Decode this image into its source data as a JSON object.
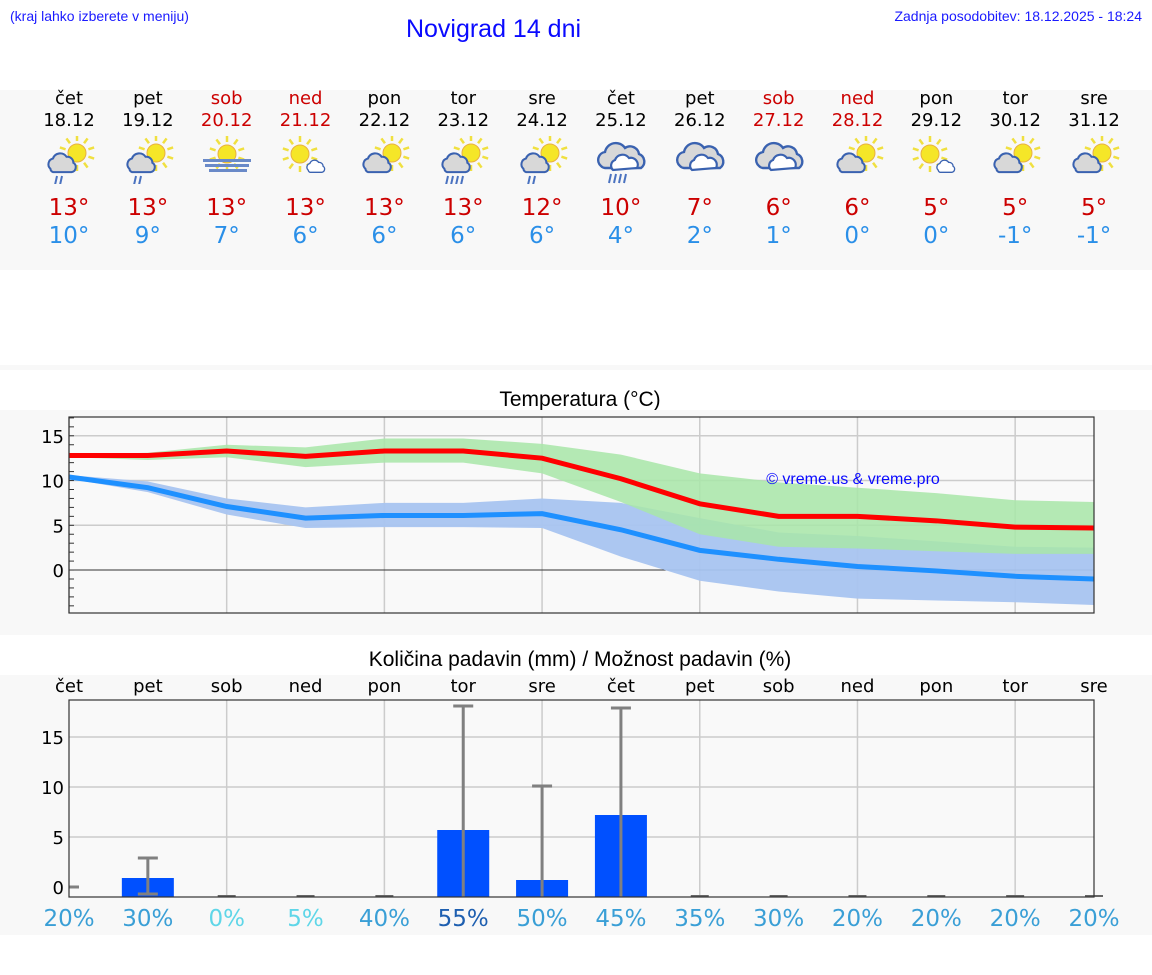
{
  "header": {
    "hint": "(kraj lahko izberete v meniju)",
    "title": "Novigrad 14 dni",
    "updated": "Zadnja posodobitev: 18.12.2025 - 18:24"
  },
  "days": [
    {
      "name": "čet",
      "date": "18.12",
      "weekend": false,
      "icon": "partly-sunny-light-rain-icon",
      "tmax": "13°",
      "tmin": "10°"
    },
    {
      "name": "pet",
      "date": "19.12",
      "weekend": false,
      "icon": "partly-sunny-light-rain-icon",
      "tmax": "13°",
      "tmin": "9°"
    },
    {
      "name": "sob",
      "date": "20.12",
      "weekend": true,
      "icon": "sun-fog-icon",
      "tmax": "13°",
      "tmin": "7°"
    },
    {
      "name": "ned",
      "date": "21.12",
      "weekend": true,
      "icon": "mostly-sunny-icon",
      "tmax": "13°",
      "tmin": "6°"
    },
    {
      "name": "pon",
      "date": "22.12",
      "weekend": false,
      "icon": "partly-cloudy-icon",
      "tmax": "13°",
      "tmin": "6°"
    },
    {
      "name": "tor",
      "date": "23.12",
      "weekend": false,
      "icon": "partly-sunny-rain-icon",
      "tmax": "13°",
      "tmin": "6°"
    },
    {
      "name": "sre",
      "date": "24.12",
      "weekend": false,
      "icon": "partly-sunny-light-rain-icon",
      "tmax": "12°",
      "tmin": "6°"
    },
    {
      "name": "čet",
      "date": "25.12",
      "weekend": false,
      "icon": "cloudy-rain-icon",
      "tmax": "10°",
      "tmin": "4°"
    },
    {
      "name": "pet",
      "date": "26.12",
      "weekend": false,
      "icon": "cloudy-icon",
      "tmax": "7°",
      "tmin": "2°"
    },
    {
      "name": "sob",
      "date": "27.12",
      "weekend": true,
      "icon": "cloudy-icon",
      "tmax": "6°",
      "tmin": "1°"
    },
    {
      "name": "ned",
      "date": "28.12",
      "weekend": true,
      "icon": "partly-cloudy-icon",
      "tmax": "6°",
      "tmin": "0°"
    },
    {
      "name": "pon",
      "date": "29.12",
      "weekend": false,
      "icon": "mostly-sunny-icon",
      "tmax": "5°",
      "tmin": "0°"
    },
    {
      "name": "tor",
      "date": "30.12",
      "weekend": false,
      "icon": "partly-cloudy-icon",
      "tmax": "5°",
      "tmin": "-1°"
    },
    {
      "name": "sre",
      "date": "31.12",
      "weekend": false,
      "icon": "partly-cloudy-icon",
      "tmax": "5°",
      "tmin": "-1°"
    }
  ],
  "temp_chart": {
    "title": "Temperatura (°C)",
    "watermark": "© vreme.us & vreme.pro"
  },
  "precip_chart": {
    "title": "Količina padavin (mm) / Možnost padavin (%)"
  },
  "colors": {
    "max_line": "#ff0000",
    "max_band": "#a8e6a8",
    "min_line": "#1e90ff",
    "min_band": "#a8c4f0",
    "bar": "#0050ff",
    "errorbar": "#808080",
    "weekend": "#cc0000"
  },
  "chart_data": [
    {
      "type": "line",
      "title": "Temperatura (°C)",
      "xlabel": "",
      "ylabel": "°C",
      "x": [
        "čet 18.12",
        "pet 19.12",
        "sob 20.12",
        "ned 21.12",
        "pon 22.12",
        "tor 23.12",
        "sre 24.12",
        "čet 25.12",
        "pet 26.12",
        "sob 27.12",
        "ned 28.12",
        "pon 29.12",
        "tor 30.12",
        "sre 31.12"
      ],
      "ylim": [
        -4.8,
        17.1
      ],
      "yticks": [
        0,
        5,
        10,
        15
      ],
      "grid": true,
      "series": [
        {
          "name": "Max",
          "color": "#ff0000",
          "values": [
            12.8,
            12.8,
            13.3,
            12.7,
            13.3,
            13.3,
            12.5,
            10.2,
            7.4,
            6.0,
            6.0,
            5.5,
            4.8,
            4.7
          ],
          "band_upper": [
            12.9,
            13.1,
            14.0,
            13.7,
            14.7,
            14.7,
            14.1,
            12.9,
            10.8,
            9.8,
            9.2,
            8.6,
            7.8,
            7.6
          ],
          "band_lower": [
            12.6,
            12.3,
            12.6,
            11.5,
            12.0,
            12.0,
            10.8,
            7.6,
            4.0,
            2.6,
            2.4,
            2.1,
            1.8,
            1.8
          ]
        },
        {
          "name": "Min",
          "color": "#1e90ff",
          "values": [
            10.4,
            9.2,
            7.1,
            5.8,
            6.1,
            6.1,
            6.3,
            4.5,
            2.2,
            1.2,
            0.4,
            -0.1,
            -0.7,
            -1.0
          ],
          "band_upper": [
            10.6,
            9.9,
            8.0,
            7.0,
            7.5,
            7.5,
            8.0,
            7.5,
            5.8,
            4.2,
            3.8,
            3.2,
            2.6,
            2.5
          ],
          "band_lower": [
            10.2,
            8.7,
            6.2,
            4.7,
            4.8,
            4.8,
            4.7,
            1.5,
            -1.2,
            -2.4,
            -3.2,
            -3.4,
            -3.6,
            -3.9
          ]
        }
      ],
      "annotations": [
        "© vreme.us & vreme.pro"
      ]
    },
    {
      "type": "bar",
      "title": "Količina padavin (mm) / Možnost padavin (%)",
      "categories": [
        "čet",
        "pet",
        "sob",
        "ned",
        "pon",
        "tor",
        "sre",
        "čet",
        "pet",
        "sob",
        "ned",
        "pon",
        "tor",
        "sre"
      ],
      "ylabel": "mm",
      "ylim": [
        -1,
        18.7
      ],
      "yticks": [
        0,
        5,
        10,
        15
      ],
      "grid": true,
      "series": [
        {
          "name": "Količina padavin (mm)",
          "values": [
            0,
            0.9,
            0,
            0,
            0,
            5.7,
            0.7,
            7.2,
            0,
            0,
            0,
            0,
            0,
            0
          ]
        },
        {
          "name": "Max (error bar, mm)",
          "values": [
            0,
            2.9,
            0,
            0,
            0,
            18.1,
            10.1,
            17.9,
            0,
            0,
            0,
            0,
            0,
            0
          ]
        },
        {
          "name": "Min (error bar, mm)",
          "values": [
            0,
            -0.7,
            0,
            0,
            0,
            0,
            0,
            0,
            0,
            0,
            0,
            0,
            0,
            0
          ]
        },
        {
          "name": "Možnost padavin (%)",
          "values": [
            20,
            30,
            0,
            5,
            40,
            55,
            50,
            45,
            35,
            30,
            20,
            20,
            20,
            20
          ]
        }
      ],
      "probability_labels": [
        "20%",
        "30%",
        "0%",
        "5%",
        "40%",
        "55%",
        "50%",
        "45%",
        "35%",
        "30%",
        "20%",
        "20%",
        "20%",
        "20%"
      ],
      "probability_colors": [
        "#3a9fd6",
        "#3a9fd6",
        "#5fd6e8",
        "#5fd6e8",
        "#3a9fd6",
        "#1e5fb0",
        "#3a9fd6",
        "#3a9fd6",
        "#3a9fd6",
        "#3a9fd6",
        "#3a9fd6",
        "#3a9fd6",
        "#3a9fd6",
        "#3a9fd6"
      ]
    }
  ]
}
